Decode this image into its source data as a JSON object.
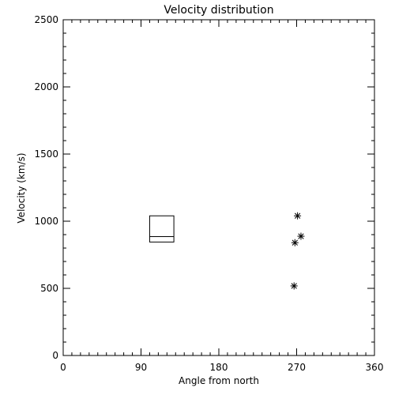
{
  "chart_data": {
    "type": "scatter",
    "title": "Velocity distribution",
    "xlabel": "Angle from north",
    "ylabel": "Velocity (km/s)",
    "xlim": [
      0,
      360
    ],
    "ylim": [
      0,
      2500
    ],
    "x_ticks": [
      "0",
      "90",
      "180",
      "270",
      "360"
    ],
    "y_ticks": [
      "0",
      "500",
      "1000",
      "1500",
      "2000",
      "2500"
    ],
    "grid": false,
    "box": {
      "x_range": [
        100,
        128
      ],
      "low": 845,
      "median": 885,
      "high": 1040
    },
    "points": [
      {
        "x": 271,
        "y": 1040
      },
      {
        "x": 275,
        "y": 888
      },
      {
        "x": 268,
        "y": 840
      },
      {
        "x": 267,
        "y": 518
      }
    ]
  }
}
